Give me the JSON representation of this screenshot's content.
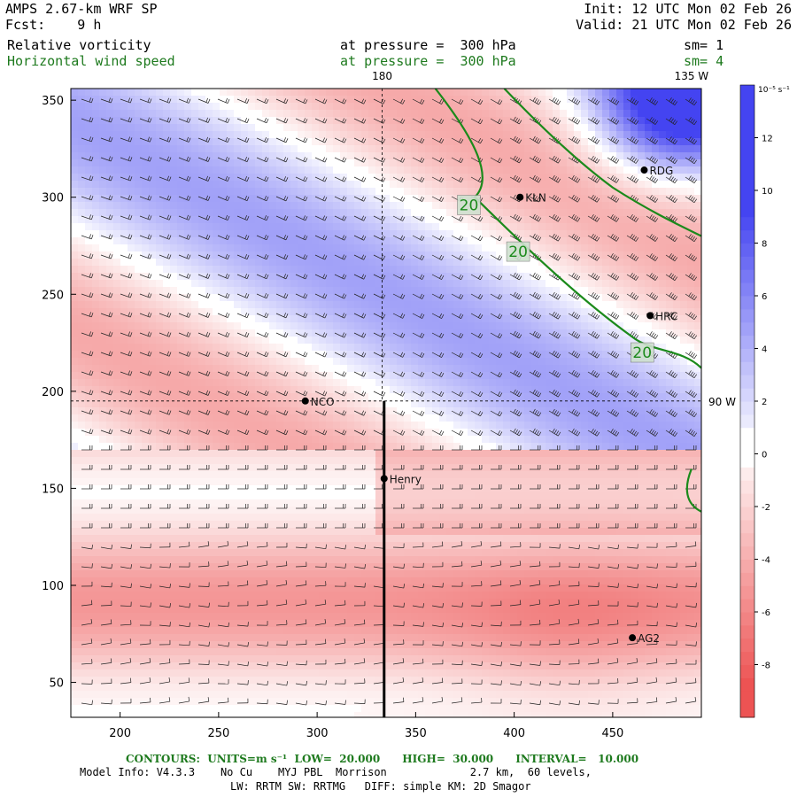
{
  "header": {
    "model": "AMPS 2.67-km WRF SP",
    "fcst": "Fcst:    9 h",
    "init": "Init: 12 UTC Mon 02 Feb 26",
    "valid": "Valid: 21 UTC Mon 02 Feb 26",
    "field1": "Relative vorticity",
    "field2": "Horizontal wind speed",
    "level1": "at pressure =  300 hPa",
    "level2": "at pressure =  300 hPa",
    "sm1": "sm= 1",
    "sm2": "sm= 4"
  },
  "map": {
    "x_ticks": [
      "200",
      "250",
      "300",
      "350",
      "400",
      "450"
    ],
    "y_ticks": [
      "350",
      "300",
      "250",
      "200",
      "150",
      "100",
      "50"
    ],
    "x_range": [
      175,
      495
    ],
    "y_range": [
      32,
      356
    ],
    "meridian_labels": [
      {
        "text": "180",
        "x": 333,
        "y": 360
      },
      {
        "text": "135 W",
        "x": 490,
        "y": 360
      },
      {
        "text": "90 W",
        "x": 510,
        "y": 195
      }
    ],
    "stations": [
      {
        "name": "NCO",
        "x": 294,
        "y": 195
      },
      {
        "name": "Henry",
        "x": 334,
        "y": 155
      },
      {
        "name": "KLN",
        "x": 403,
        "y": 300
      },
      {
        "name": "RDG",
        "x": 466,
        "y": 314
      },
      {
        "name": "HRC",
        "x": 469,
        "y": 239
      },
      {
        "name": "AG2",
        "x": 460,
        "y": 73
      }
    ],
    "contour_labels": [
      {
        "text": "20",
        "x": 377,
        "y": 296
      },
      {
        "text": "20",
        "x": 402,
        "y": 272
      },
      {
        "text": "20",
        "x": 465,
        "y": 220
      }
    ],
    "wind_contour_value": 20,
    "marker_line": {
      "x": 334,
      "y_from": 32,
      "y_to": 195
    }
  },
  "colorbar": {
    "unit": "10⁻⁵ s⁻¹",
    "ticks": [
      "12",
      "10",
      "8",
      "6",
      "4",
      "2",
      "0",
      "-2",
      "-4",
      "-6",
      "-8"
    ],
    "range": [
      -10,
      14
    ]
  },
  "footer": {
    "contours": "CONTOURS:  UNITS=m s⁻¹  LOW=  20.000      HIGH=  30.000      INTERVAL=   10.000",
    "info1": "Model Info: V4.3.3    No Cu    MYJ PBL  Morrison             2.7 km,  60 levels,",
    "info2": "LW: RRTM SW: RRTMG   DIFF: simple KM: 2D Smagor"
  },
  "colors": {
    "positive": "#3a3af0",
    "negative": "#ec4a4a",
    "contour": "#1b8a1b",
    "contour_label_bg": "#cfe0cf"
  }
}
